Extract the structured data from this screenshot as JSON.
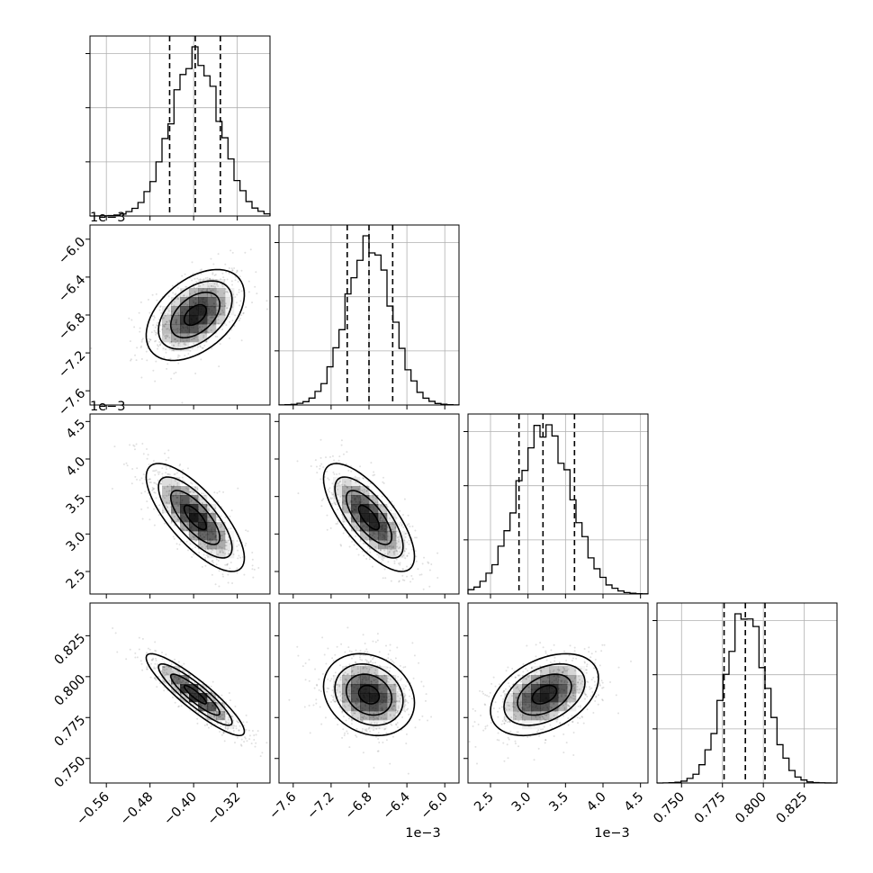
{
  "chart_data": {
    "type": "scatter",
    "subtype": "corner-plot",
    "grid": true,
    "colors": {
      "line": "#000000",
      "grid": "#b0b0b0",
      "points": "#000000",
      "density": "#000000"
    },
    "parameters": [
      {
        "range": [
          -0.59,
          -0.26
        ],
        "exponent": "",
        "ticks": [
          -0.56,
          -0.48,
          -0.4,
          -0.32
        ],
        "tick_labels": [
          "−0.56",
          "−0.48",
          "−0.40",
          "−0.32"
        ],
        "quantiles": [
          -0.444,
          -0.397,
          -0.351
        ],
        "mean": -0.397,
        "sd": 0.045
      },
      {
        "range": [
          -7.75,
          -5.85
        ],
        "exponent": "1e−3",
        "ticks": [
          -7.6,
          -7.2,
          -6.8,
          -6.4,
          -6.0
        ],
        "tick_labels": [
          "−7.6",
          "−7.2",
          "−6.8",
          "−6.4",
          "−6.0"
        ],
        "quantiles": [
          -7.03,
          -6.8,
          -6.55
        ],
        "mean": -6.8,
        "sd": 0.24
      },
      {
        "range": [
          2.2,
          4.6
        ],
        "exponent": "1e−3",
        "ticks": [
          2.5,
          3.0,
          3.5,
          4.0,
          4.5
        ],
        "tick_labels": [
          "2.5",
          "3.0",
          "3.5",
          "4.0",
          "4.5"
        ],
        "quantiles": [
          2.88,
          3.2,
          3.62
        ],
        "mean": 3.22,
        "sd": 0.36
      },
      {
        "range": [
          0.735,
          0.845
        ],
        "exponent": "",
        "ticks": [
          0.75,
          0.775,
          0.8,
          0.825
        ],
        "tick_labels": [
          "0.750",
          "0.775",
          "0.800",
          "0.825"
        ],
        "quantiles": [
          0.776,
          0.789,
          0.801
        ],
        "mean": 0.789,
        "sd": 0.0125
      }
    ],
    "correlations": [
      {
        "i": 1,
        "j": 0,
        "rho": 0.45
      },
      {
        "i": 2,
        "j": 0,
        "rho": -0.75
      },
      {
        "i": 2,
        "j": 1,
        "rho": -0.72
      },
      {
        "i": 3,
        "j": 0,
        "rho": -0.9
      },
      {
        "i": 3,
        "j": 1,
        "rho": -0.2
      },
      {
        "i": 3,
        "j": 2,
        "rho": 0.4
      }
    ]
  }
}
